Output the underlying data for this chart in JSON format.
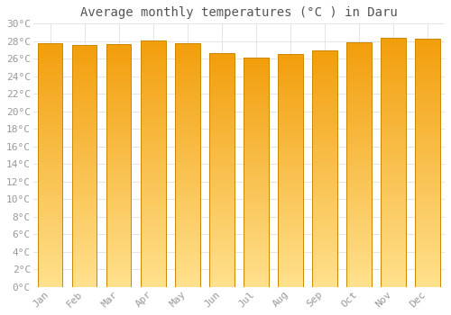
{
  "title": "Average monthly temperatures (°C ) in Daru",
  "months": [
    "Jan",
    "Feb",
    "Mar",
    "Apr",
    "May",
    "Jun",
    "Jul",
    "Aug",
    "Sep",
    "Oct",
    "Nov",
    "Dec"
  ],
  "temperatures": [
    27.8,
    27.6,
    27.7,
    28.1,
    27.8,
    26.6,
    26.1,
    26.5,
    27.0,
    27.9,
    28.4,
    28.3
  ],
  "ylim": [
    0,
    30
  ],
  "yticks": [
    0,
    2,
    4,
    6,
    8,
    10,
    12,
    14,
    16,
    18,
    20,
    22,
    24,
    26,
    28,
    30
  ],
  "bar_color_top": "#F5A623",
  "bar_color_mid": "#FFC020",
  "bar_color_bottom": "#FFE080",
  "bar_edge_color": "#CC8800",
  "bg_color": "#FFFFFF",
  "plot_bg_color": "#FFFFFF",
  "grid_color": "#E0E0E0",
  "title_fontsize": 10,
  "tick_fontsize": 8,
  "title_font": "monospace",
  "tick_font": "monospace"
}
